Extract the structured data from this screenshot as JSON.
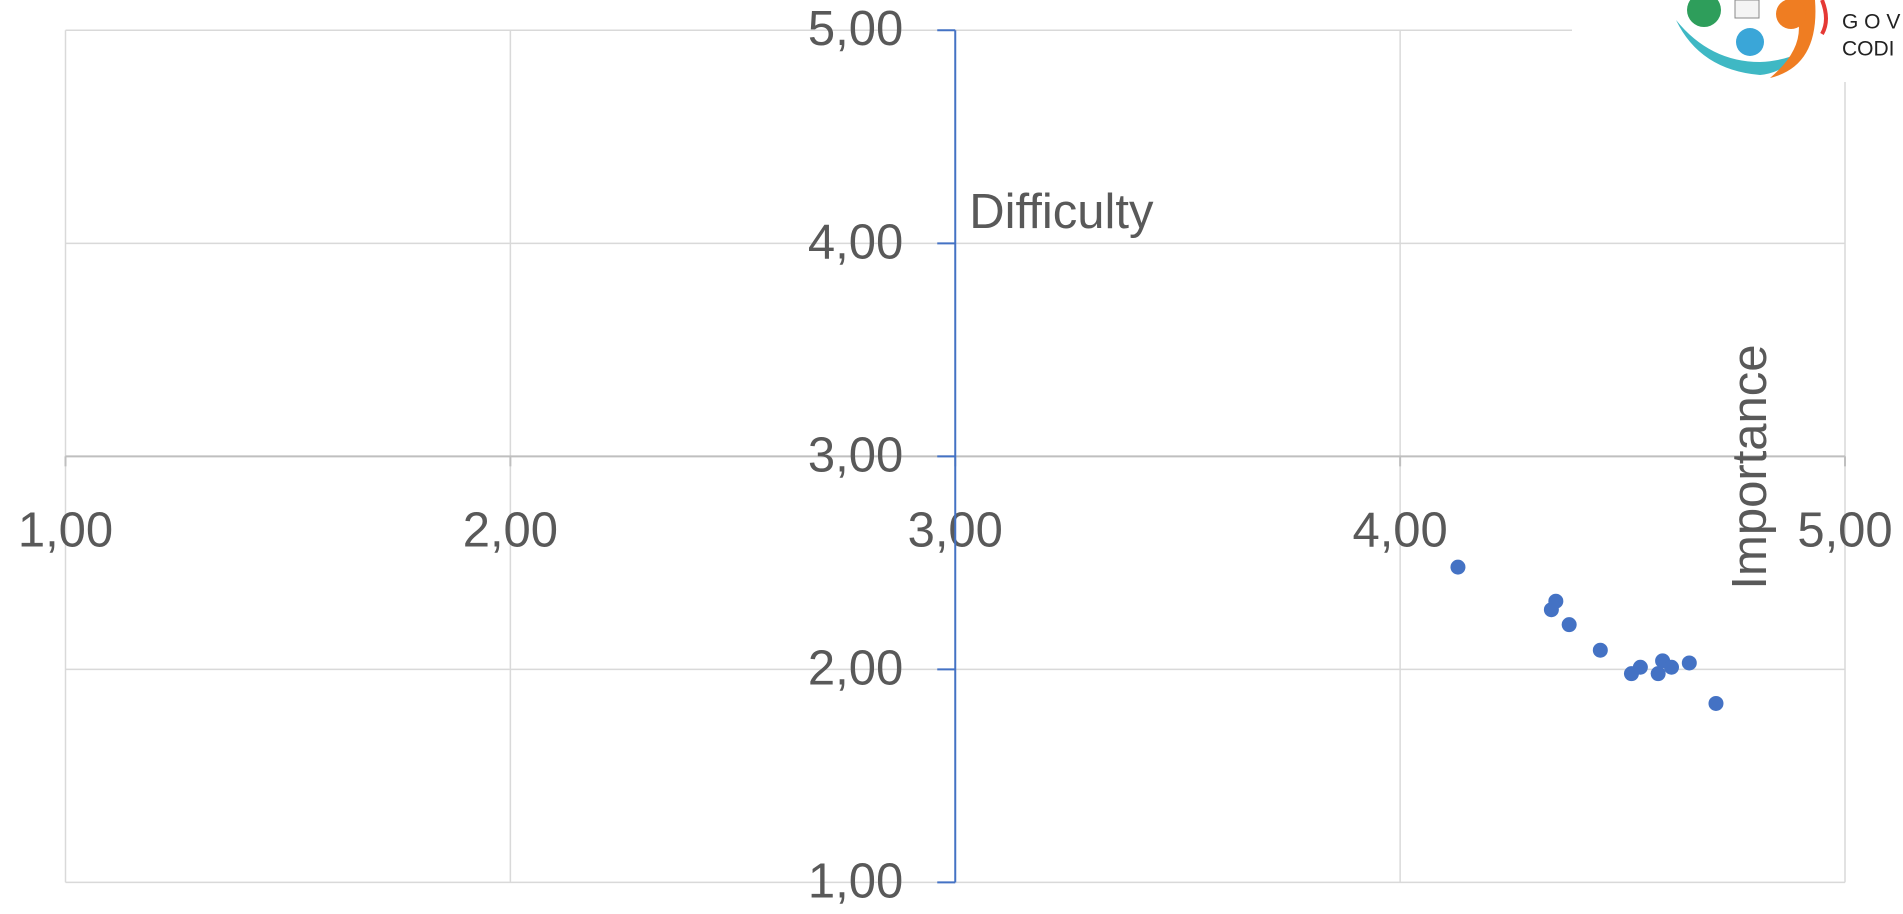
{
  "chart_data": {
    "type": "scatter",
    "x_label": "Importance",
    "y_label": "Difficulty",
    "x": [
      4.13,
      4.35,
      4.34,
      4.38,
      4.45,
      4.52,
      4.54,
      4.58,
      4.59,
      4.61,
      4.65,
      4.71
    ],
    "values": [
      2.48,
      2.32,
      2.28,
      2.21,
      2.09,
      1.98,
      2.01,
      1.98,
      2.04,
      2.01,
      2.03,
      1.84
    ],
    "color": "#4472c4",
    "xlim": [
      1,
      5
    ],
    "ylim": [
      1,
      5
    ],
    "xticks": [
      {
        "value": 1,
        "label": "1,00"
      },
      {
        "value": 2,
        "label": "2,00"
      },
      {
        "value": 3,
        "label": "3,00"
      },
      {
        "value": 4,
        "label": "4,00"
      },
      {
        "value": 5,
        "label": "5,00"
      }
    ],
    "yticks": [
      {
        "value": 1,
        "label": "1,00"
      },
      {
        "value": 2,
        "label": "2,00"
      },
      {
        "value": 3,
        "label": "3,00"
      },
      {
        "value": 4,
        "label": "4,00"
      },
      {
        "value": 5,
        "label": "5,00"
      }
    ],
    "axis_cross": {
      "x": 3,
      "y": 3
    },
    "grid": true
  },
  "logo": {
    "lines": [
      "G O V",
      "CODI"
    ]
  }
}
